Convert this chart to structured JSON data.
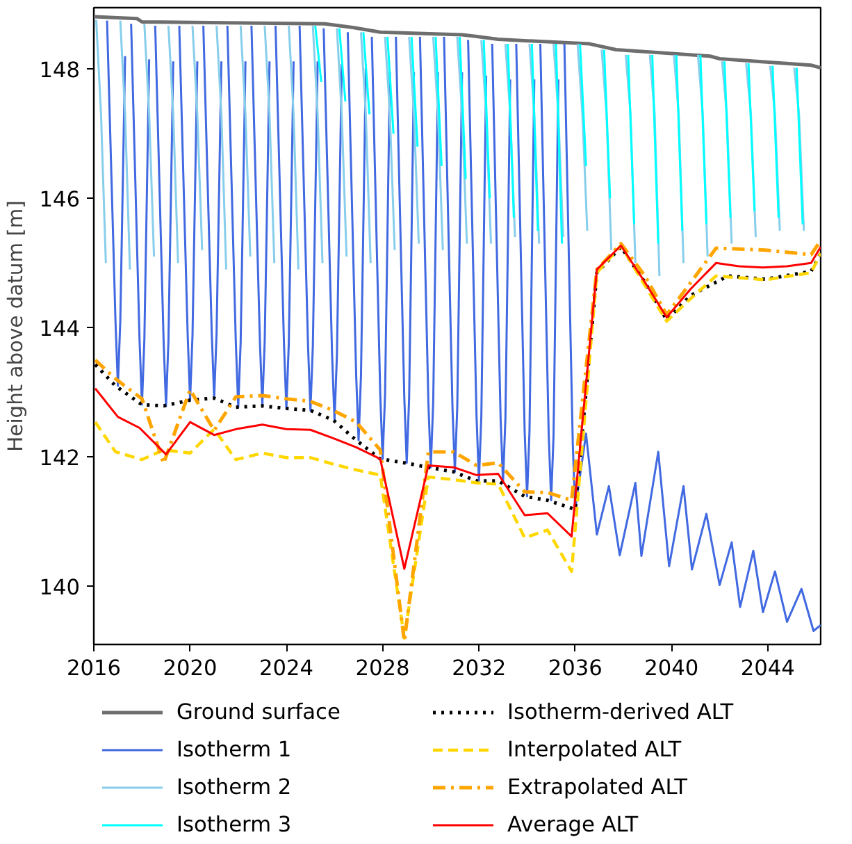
{
  "chart_data": {
    "type": "line",
    "ylabel": "Height above datum [m]",
    "xlim": [
      2016,
      2046.2
    ],
    "ylim": [
      139.1,
      148.95
    ],
    "xticks": [
      2016,
      2020,
      2024,
      2028,
      2032,
      2036,
      2040,
      2044
    ],
    "yticks": [
      140,
      142,
      144,
      146,
      148
    ],
    "grid": false,
    "legend": "bottom",
    "series": [
      {
        "name": "Ground surface",
        "color": "#6e6e6e",
        "line_style": "solid",
        "x": [
          2016,
          2017.8,
          2018,
          2025.6,
          2026.8,
          2027.9,
          2031.3,
          2031.8,
          2032.8,
          2036.6,
          2037.7,
          2041.6,
          2042,
          2045.8,
          2046.2
        ],
        "values": [
          148.81,
          148.78,
          148.73,
          148.7,
          148.64,
          148.57,
          148.53,
          148.51,
          148.46,
          148.39,
          148.3,
          148.2,
          148.16,
          148.06,
          148.02
        ]
      },
      {
        "name": "Isotherm 1",
        "color": "#4169e1",
        "line_style": "solid",
        "x": [
          2016.55,
          2016.9,
          2017,
          2017.1,
          2017.3,
          null,
          2017.55,
          2017.9,
          2018,
          2018.1,
          2018.3,
          null,
          2018.55,
          2018.9,
          2019,
          2019.1,
          2019.3,
          null,
          2019.55,
          2019.9,
          2020,
          2020.1,
          2020.3,
          null,
          2020.55,
          2020.9,
          2021,
          2021.1,
          2021.3,
          null,
          2021.55,
          2021.9,
          2022,
          2022.1,
          2022.3,
          null,
          2022.55,
          2022.9,
          2023,
          2023.1,
          2023.3,
          null,
          2023.55,
          2023.9,
          2024,
          2024.1,
          2024.3,
          null,
          2024.55,
          2024.9,
          2025,
          2025.1,
          2025.3,
          null,
          2025.55,
          2025.9,
          2026,
          2026.1,
          2026.3,
          null,
          2026.55,
          2026.9,
          2027,
          2027.1,
          2027.3,
          null,
          2027.55,
          2027.9,
          2028,
          2028.1,
          2028.3,
          null,
          2028.55,
          2028.9,
          2029,
          2029.1,
          2029.3,
          null,
          2029.55,
          2029.9,
          2030,
          2030.1,
          2030.3,
          null,
          2030.55,
          2030.9,
          2031,
          2031.1,
          2031.3,
          null,
          2031.55,
          2031.9,
          2032,
          2032.1,
          2032.3,
          null,
          2032.55,
          2032.9,
          2033,
          2033.1,
          2033.3,
          null,
          2033.55,
          2033.9,
          2034,
          2034.1,
          2034.3,
          null,
          2034.55,
          2034.9,
          2035,
          2035.1,
          2035.3,
          null,
          2035.55,
          2035.9,
          2036,
          2036.45,
          2036.9,
          2037.4,
          2037.85,
          2038.5,
          2038.75,
          2039.45,
          2039.9,
          2040.5,
          2040.85,
          2041.45,
          2042,
          2042.5,
          2042.85,
          2043.4,
          2043.8,
          2044.3,
          2044.8,
          2045.4,
          2045.9,
          2046.2
        ],
        "values": [
          148.75,
          144.1,
          143.1,
          144.1,
          148.2,
          null,
          148.7,
          143.81,
          142.81,
          143.81,
          148.15,
          null,
          148.67,
          143.79,
          142.79,
          143.79,
          148.12,
          null,
          148.67,
          143.88,
          142.88,
          143.88,
          148.12,
          null,
          148.67,
          143.91,
          142.91,
          143.91,
          148.12,
          null,
          148.67,
          143.77,
          142.77,
          143.77,
          148.12,
          null,
          148.67,
          143.79,
          142.79,
          143.79,
          148.12,
          null,
          148.67,
          143.75,
          142.75,
          143.75,
          148.12,
          null,
          148.67,
          143.72,
          142.72,
          143.72,
          148.12,
          null,
          148.63,
          143.57,
          142.57,
          143.57,
          148.08,
          null,
          148.57,
          143.26,
          142.26,
          143.26,
          148.02,
          null,
          148.5,
          142.97,
          141.97,
          142.97,
          147.95,
          null,
          148.5,
          142.91,
          141.91,
          142.91,
          147.95,
          null,
          148.5,
          142.84,
          141.84,
          142.84,
          147.95,
          null,
          148.5,
          142.77,
          141.77,
          142.77,
          147.95,
          null,
          148.45,
          142.63,
          141.63,
          142.63,
          147.9,
          null,
          148.39,
          142.6,
          141.6,
          142.6,
          147.84,
          null,
          148.39,
          142.39,
          141.39,
          142.39,
          147.84,
          null,
          148.39,
          142.33,
          141.33,
          142.33,
          147.84,
          null,
          148.39,
          142.19,
          141.19,
          142.36,
          140.8,
          141.55,
          140.48,
          141.6,
          140.47,
          142.08,
          140.31,
          141.55,
          140.26,
          141.12,
          140.02,
          140.68,
          139.68,
          140.55,
          139.6,
          140.23,
          139.45,
          139.96,
          139.31,
          139.4
        ]
      },
      {
        "name": "Isotherm 2",
        "color": "#87ceeb",
        "line_style": "solid",
        "x": [
          2016.1,
          2016.3,
          2016.5,
          null,
          2017.1,
          2017.3,
          2017.5,
          null,
          2018.1,
          2018.3,
          2018.5,
          null,
          2019.1,
          2019.3,
          2019.5,
          null,
          2020.1,
          2020.3,
          2020.5,
          null,
          2021.1,
          2021.3,
          2021.5,
          null,
          2022.1,
          2022.3,
          2022.5,
          null,
          2023.1,
          2023.3,
          2023.5,
          null,
          2024.1,
          2024.3,
          2024.5,
          null,
          2025.1,
          2025.3,
          2025.5,
          null,
          2026.1,
          2026.3,
          2026.5,
          null,
          2027.1,
          2027.3,
          2027.5,
          null,
          2028.1,
          2028.3,
          2028.5,
          null,
          2029.1,
          2029.3,
          2029.5,
          null,
          2030.1,
          2030.3,
          2030.5,
          null,
          2031.1,
          2031.3,
          2031.5,
          null,
          2032.1,
          2032.3,
          2032.5,
          null,
          2033.1,
          2033.3,
          2033.5,
          null,
          2034.1,
          2034.3,
          2034.5,
          null,
          2035.1,
          2035.3,
          2035.5,
          null,
          2036.1,
          2036.3,
          2036.5,
          null,
          2037.1,
          2037.3,
          2037.5,
          null,
          2038.1,
          2038.3,
          2038.5,
          null,
          2039.1,
          2039.3,
          2039.5,
          null,
          2040.1,
          2040.3,
          2040.5,
          null,
          2041.1,
          2041.3,
          2041.5,
          null,
          2042.1,
          2042.3,
          2042.5,
          null,
          2043.1,
          2043.3,
          2043.5,
          null,
          2044.1,
          2044.3,
          2044.5,
          null,
          2045.1,
          2045.3,
          2045.5,
          null
        ],
        "values": [
          148.76,
          147.3,
          145.0,
          null,
          148.75,
          147.3,
          144.9,
          null,
          148.7,
          147.3,
          145.1,
          null,
          148.67,
          147.3,
          145.0,
          null,
          148.67,
          147.3,
          145.2,
          null,
          148.67,
          147.3,
          144.9,
          null,
          148.67,
          147.3,
          145.1,
          null,
          148.67,
          147.3,
          145.0,
          null,
          148.67,
          147.3,
          144.9,
          null,
          148.67,
          147.3,
          145.0,
          null,
          148.63,
          147.3,
          145.1,
          null,
          148.57,
          147.3,
          145.0,
          null,
          148.5,
          147.3,
          145.2,
          null,
          148.5,
          147.3,
          145.3,
          null,
          148.5,
          147.3,
          145.2,
          null,
          148.5,
          147.3,
          145.3,
          null,
          148.45,
          147.3,
          145.3,
          null,
          148.39,
          147.3,
          145.4,
          null,
          148.39,
          147.3,
          145.3,
          null,
          148.39,
          147.3,
          145.4,
          null,
          148.39,
          147.3,
          145.5,
          null,
          148.3,
          147.3,
          145.2,
          null,
          148.22,
          147.3,
          145.0,
          null,
          148.22,
          147.3,
          144.8,
          null,
          148.22,
          147.3,
          145.0,
          null,
          148.22,
          147.3,
          145.1,
          null,
          148.12,
          147.3,
          145.3,
          null,
          148.09,
          147.3,
          145.4,
          null,
          148.05,
          147.3,
          145.5,
          null,
          148.02,
          147.3,
          145.5,
          null
        ]
      },
      {
        "name": "Isotherm 3",
        "color": "#00ffff",
        "line_style": "solid",
        "x": [
          2025.2,
          2025.45,
          null,
          2026.2,
          2026.45,
          null,
          2027.2,
          2027.45,
          null,
          2028.2,
          2028.45,
          null,
          2029.2,
          2029.45,
          null,
          2030.2,
          2030.45,
          null,
          2031.2,
          2031.45,
          null,
          2032.2,
          2032.45,
          null,
          2033.2,
          2033.45,
          null,
          2034.2,
          2034.45,
          null,
          2035.2,
          2035.45,
          null,
          2036.2,
          2036.45,
          null,
          2037.2,
          2037.45,
          null,
          2038.2,
          2038.45,
          null,
          2039.2,
          2039.45,
          null,
          2040.2,
          2040.45,
          null,
          2041.2,
          2041.45,
          null,
          2042.2,
          2042.45,
          null,
          2043.2,
          2043.45,
          null,
          2044.2,
          2044.45,
          null,
          2045.2,
          2045.45,
          null
        ],
        "values": [
          148.67,
          147.8,
          null,
          148.63,
          147.5,
          null,
          148.57,
          147.3,
          null,
          148.5,
          147.0,
          null,
          148.5,
          146.8,
          null,
          148.5,
          146.5,
          null,
          148.5,
          146.3,
          null,
          148.45,
          146.0,
          null,
          148.39,
          145.7,
          null,
          148.39,
          145.5,
          null,
          148.39,
          145.3,
          null,
          148.39,
          146.5,
          null,
          148.3,
          146.0,
          null,
          148.22,
          145.6,
          null,
          148.22,
          145.3,
          null,
          148.22,
          145.5,
          null,
          148.22,
          145.6,
          null,
          148.12,
          145.7,
          null,
          148.09,
          145.8,
          null,
          148.05,
          145.7,
          null,
          148.02,
          145.6,
          null
        ]
      },
      {
        "name": "Isotherm-derived ALT",
        "color": "#000000",
        "line_style": "dotted",
        "x": [
          2016.06,
          2016.9,
          2018,
          2018.9,
          2020,
          2021,
          2021.9,
          2023,
          2024,
          2025,
          2025.95,
          2026.9,
          2027.9,
          2028.9,
          2029.9,
          2030.95,
          2031.9,
          2032.8,
          2033.9,
          2034.85,
          2036,
          2036.9,
          2037.9,
          2038.9,
          2039.8,
          2040.8,
          2042.35,
          2043.9,
          2045.8,
          2046.2
        ],
        "values": [
          143.43,
          143.1,
          142.81,
          142.79,
          142.88,
          142.91,
          142.77,
          142.79,
          142.75,
          142.72,
          142.57,
          142.26,
          141.97,
          141.91,
          141.84,
          141.77,
          141.63,
          141.63,
          141.39,
          141.33,
          141.19,
          144.85,
          145.25,
          144.7,
          144.12,
          144.5,
          144.8,
          144.75,
          144.87,
          145.15
        ]
      },
      {
        "name": "Interpolated ALT",
        "color": "#ffd700",
        "line_style": "dashed",
        "x": [
          2016.06,
          2016.9,
          2018,
          2018.9,
          2020,
          2021,
          2021.9,
          2023,
          2024,
          2025,
          2025.95,
          2026.9,
          2027.9,
          2028.9,
          2029.9,
          2030.95,
          2031.9,
          2032.8,
          2033.9,
          2034.85,
          2035.85,
          2036.9,
          2037.9,
          2038.9,
          2039.8,
          2040.8,
          2041.85,
          2043.9,
          2045.8,
          2046.2
        ],
        "values": [
          142.54,
          142.08,
          141.96,
          142.11,
          142.06,
          142.43,
          141.96,
          142.06,
          141.99,
          141.99,
          141.89,
          141.8,
          141.72,
          139.2,
          141.69,
          141.65,
          141.6,
          141.58,
          140.75,
          140.87,
          140.23,
          144.85,
          145.27,
          144.65,
          144.1,
          144.45,
          144.8,
          144.74,
          144.85,
          145.15
        ]
      },
      {
        "name": "Extrapolated ALT",
        "color": "#ffa500",
        "line_style": "dashdot",
        "x": [
          2016.06,
          2016.9,
          2018,
          2018.9,
          2020,
          2021,
          2021.9,
          2023,
          2024,
          2025,
          2025.95,
          2026.9,
          2027.9,
          2028.9,
          2029.9,
          2030.95,
          2031.9,
          2032.8,
          2033.9,
          2034.85,
          2035.85,
          2036.9,
          2037.9,
          2038.9,
          2039.8,
          2040.8,
          2041.85,
          2043.9,
          2045.8,
          2046.2
        ],
        "values": [
          143.5,
          143.21,
          142.9,
          141.9,
          143.04,
          142.41,
          142.93,
          142.95,
          142.9,
          142.86,
          142.72,
          142.54,
          142.11,
          139.15,
          142.08,
          142.08,
          141.87,
          141.91,
          141.46,
          141.45,
          141.33,
          144.9,
          145.3,
          144.8,
          144.2,
          144.7,
          145.23,
          145.2,
          145.13,
          145.35
        ]
      },
      {
        "name": "Average ALT",
        "color": "#ff0000",
        "line_style": "solid",
        "x": [
          2016.06,
          2017,
          2017.9,
          2019,
          2020,
          2021,
          2021.9,
          2023,
          2024,
          2025,
          2025.95,
          2026.9,
          2027.9,
          2028.9,
          2029.9,
          2030.95,
          2031.9,
          2032.8,
          2033.9,
          2034.85,
          2035.85,
          2036.9,
          2037.9,
          2038.9,
          2039.8,
          2040.8,
          2041.85,
          2042.8,
          2043.8,
          2044.8,
          2045.8,
          2046.2
        ],
        "values": [
          143.06,
          142.62,
          142.45,
          142.04,
          142.54,
          142.34,
          142.43,
          142.5,
          142.43,
          142.42,
          142.29,
          142.15,
          141.97,
          140.27,
          141.87,
          141.84,
          141.72,
          141.74,
          141.1,
          141.13,
          140.77,
          144.9,
          145.27,
          144.7,
          144.16,
          144.6,
          145.0,
          144.95,
          144.93,
          144.95,
          145.0,
          145.25
        ]
      }
    ]
  }
}
